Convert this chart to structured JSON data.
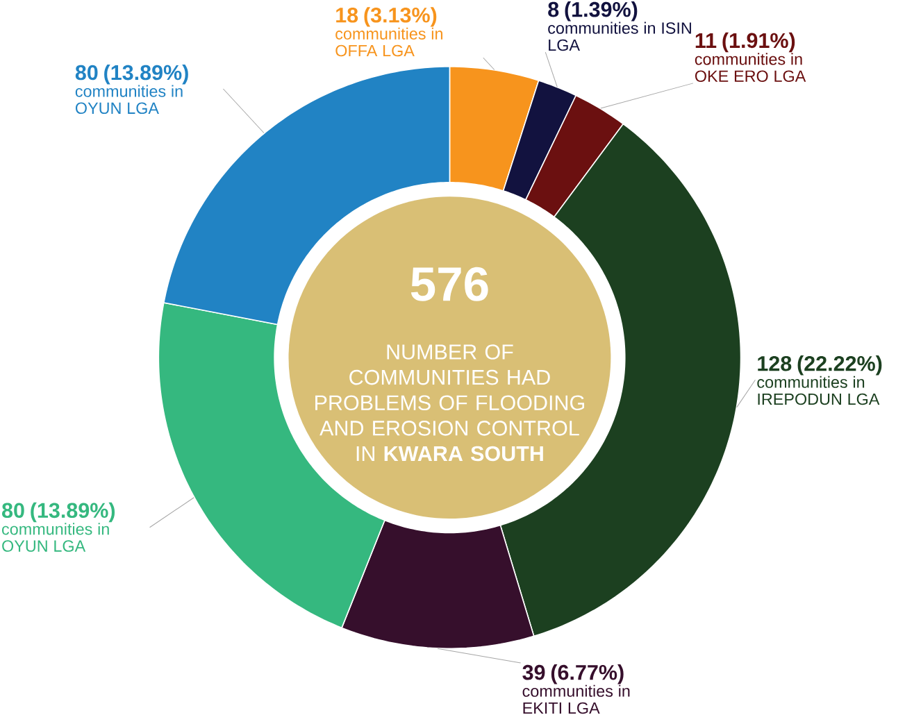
{
  "chart_data": {
    "type": "donut",
    "title": "NUMBER OF COMMUNITIES HAD PROBLEMS OF FLOODING AND EROSION CONTROL IN **KWARA SOUTH**",
    "annotations": [
      "576"
    ],
    "categories": [
      "communities in OFFA LGA",
      "communities in ISIN LGA",
      "communities in OKE ERO LGA",
      "communities in IREPODUN LGA",
      "communities in EKITI LGA",
      "communities in OYUN LGA",
      "communities in OYUN LGA"
    ],
    "values": [
      18,
      8,
      11,
      128,
      39,
      80,
      80
    ],
    "value_labels": [
      "18 (3.13%)",
      "8 (1.39%)",
      "11 (1.91%)",
      "128 (22.22%)",
      "39 (6.77%)",
      "80 (13.89%)",
      "80 (13.89%)"
    ],
    "colors": [
      "#f7941d",
      "#12123f",
      "#6b1010",
      "#1c4020",
      "#360f2c",
      "#35b87f",
      "#2183c4"
    ]
  }
}
